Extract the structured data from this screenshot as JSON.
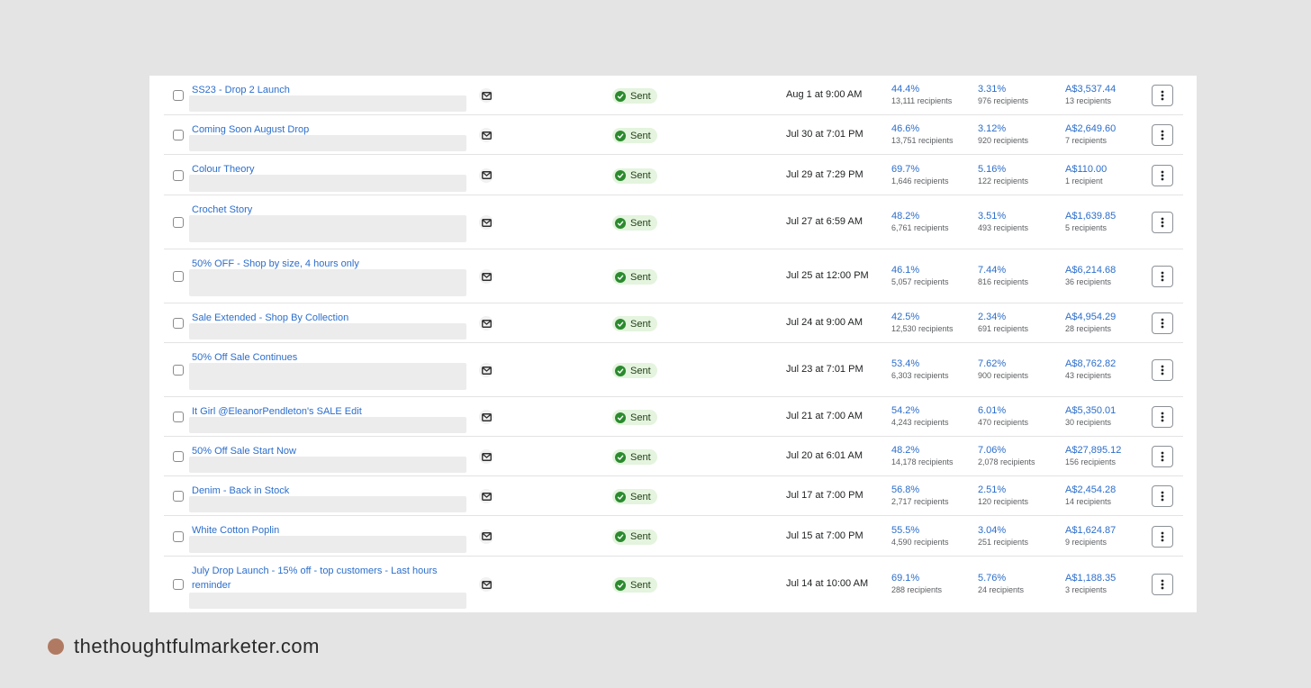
{
  "campaigns": [
    {
      "name": "SS23 - Drop 2 Launch",
      "status": "Sent",
      "date": "Aug 1 at 9:00 AM",
      "open_rate": "44.4%",
      "open_recipients": "13,111 recipients",
      "click_rate": "3.31%",
      "click_recipients": "976 recipients",
      "revenue": "A$3,537.44",
      "revenue_recipients": "13 recipients"
    },
    {
      "name": "Coming Soon August Drop",
      "status": "Sent",
      "date": "Jul 30 at 7:01 PM",
      "open_rate": "46.6%",
      "open_recipients": "13,751 recipients",
      "click_rate": "3.12%",
      "click_recipients": "920 recipients",
      "revenue": "A$2,649.60",
      "revenue_recipients": "7 recipients"
    },
    {
      "name": "Colour Theory",
      "status": "Sent",
      "date": "Jul 29 at 7:29 PM",
      "open_rate": "69.7%",
      "open_recipients": "1,646 recipients",
      "click_rate": "5.16%",
      "click_recipients": "122 recipients",
      "revenue": "A$110.00",
      "revenue_recipients": "1 recipient"
    },
    {
      "name": "Crochet Story",
      "status": "Sent",
      "date": "Jul 27 at 6:59 AM",
      "open_rate": "48.2%",
      "open_recipients": "6,761 recipients",
      "click_rate": "3.51%",
      "click_recipients": "493 recipients",
      "revenue": "A$1,639.85",
      "revenue_recipients": "5 recipients"
    },
    {
      "name": "50% OFF - Shop by size, 4 hours only",
      "status": "Sent",
      "date": "Jul 25 at 12:00 PM",
      "open_rate": "46.1%",
      "open_recipients": "5,057 recipients",
      "click_rate": "7.44%",
      "click_recipients": "816 recipients",
      "revenue": "A$6,214.68",
      "revenue_recipients": "36 recipients"
    },
    {
      "name": "Sale Extended - Shop By Collection",
      "status": "Sent",
      "date": "Jul 24 at 9:00 AM",
      "open_rate": "42.5%",
      "open_recipients": "12,530 recipients",
      "click_rate": "2.34%",
      "click_recipients": "691 recipients",
      "revenue": "A$4,954.29",
      "revenue_recipients": "28 recipients"
    },
    {
      "name": "50% Off Sale Continues",
      "status": "Sent",
      "date": "Jul 23 at 7:01 PM",
      "open_rate": "53.4%",
      "open_recipients": "6,303 recipients",
      "click_rate": "7.62%",
      "click_recipients": "900 recipients",
      "revenue": "A$8,762.82",
      "revenue_recipients": "43 recipients"
    },
    {
      "name": "It Girl @EleanorPendleton's SALE Edit",
      "status": "Sent",
      "date": "Jul 21 at 7:00 AM",
      "open_rate": "54.2%",
      "open_recipients": "4,243 recipients",
      "click_rate": "6.01%",
      "click_recipients": "470 recipients",
      "revenue": "A$5,350.01",
      "revenue_recipients": "30 recipients"
    },
    {
      "name": "50% Off Sale Start Now",
      "status": "Sent",
      "date": "Jul 20 at 6:01 AM",
      "open_rate": "48.2%",
      "open_recipients": "14,178 recipients",
      "click_rate": "7.06%",
      "click_recipients": "2,078 recipients",
      "revenue": "A$27,895.12",
      "revenue_recipients": "156 recipients"
    },
    {
      "name": "Denim - Back in Stock",
      "status": "Sent",
      "date": "Jul 17 at 7:00 PM",
      "open_rate": "56.8%",
      "open_recipients": "2,717 recipients",
      "click_rate": "2.51%",
      "click_recipients": "120 recipients",
      "revenue": "A$2,454.28",
      "revenue_recipients": "14 recipients"
    },
    {
      "name": "White Cotton Poplin",
      "status": "Sent",
      "date": "Jul 15 at 7:00 PM",
      "open_rate": "55.5%",
      "open_recipients": "4,590 recipients",
      "click_rate": "3.04%",
      "click_recipients": "251 recipients",
      "revenue": "A$1,624.87",
      "revenue_recipients": "9 recipients"
    },
    {
      "name": "July Drop Launch - 15% off - top customers - Last hours reminder",
      "status": "Sent",
      "date": "Jul 14 at 10:00 AM",
      "open_rate": "69.1%",
      "open_recipients": "288 recipients",
      "click_rate": "5.76%",
      "click_recipients": "24 recipients",
      "revenue": "A$1,188.35",
      "revenue_recipients": "3 recipients"
    }
  ],
  "footer": {
    "brand": "thethoughtfulmarketer.com"
  },
  "icons": {
    "channel": "email-icon",
    "status": "check-circle-icon",
    "actions": "more-vertical-icon"
  },
  "colors": {
    "link": "#2c6ecb",
    "status_bg": "#e4f4de",
    "status_icon": "#2b8a2e",
    "footer_dot": "#b07a62"
  }
}
